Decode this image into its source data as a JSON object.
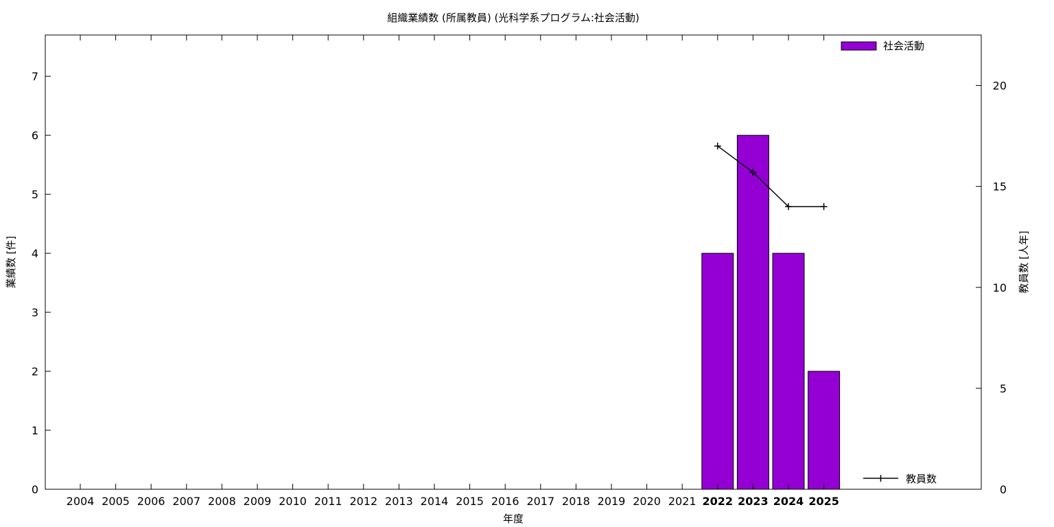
{
  "chart_data": {
    "type": "bar",
    "title": "組織業績数 (所属教員) (光科学系プログラム:社会活動)",
    "xlabel": "年度",
    "ylabel": "業績数 [件]",
    "y2label": "教員数 [人年]",
    "categories": [
      "2004",
      "2005",
      "2006",
      "2007",
      "2008",
      "2009",
      "2010",
      "2011",
      "2012",
      "2013",
      "2014",
      "2015",
      "2016",
      "2017",
      "2018",
      "2019",
      "2020",
      "2021",
      "2022",
      "2023",
      "2024",
      "2025"
    ],
    "highlighted_categories": [
      "2022",
      "2023",
      "2024",
      "2025"
    ],
    "ylim": [
      0,
      7.7
    ],
    "y_ticks": [
      0,
      1,
      2,
      3,
      4,
      5,
      6,
      7
    ],
    "y2lim": [
      0,
      22.5
    ],
    "y2_ticks": [
      0,
      5,
      10,
      15,
      20
    ],
    "grid": false,
    "legend_position": "top-right",
    "series": [
      {
        "name": "社会活動",
        "type": "bar",
        "axis": "left",
        "color": "#9400d3",
        "values": [
          null,
          null,
          null,
          null,
          null,
          null,
          null,
          null,
          null,
          null,
          null,
          null,
          null,
          null,
          null,
          null,
          null,
          null,
          4,
          6,
          4,
          2
        ]
      },
      {
        "name": "教員数",
        "type": "line",
        "axis": "right",
        "color": "#000000",
        "values": [
          null,
          null,
          null,
          null,
          null,
          null,
          null,
          null,
          null,
          null,
          null,
          null,
          null,
          null,
          null,
          null,
          null,
          null,
          17,
          15.7,
          14,
          14
        ]
      }
    ]
  }
}
